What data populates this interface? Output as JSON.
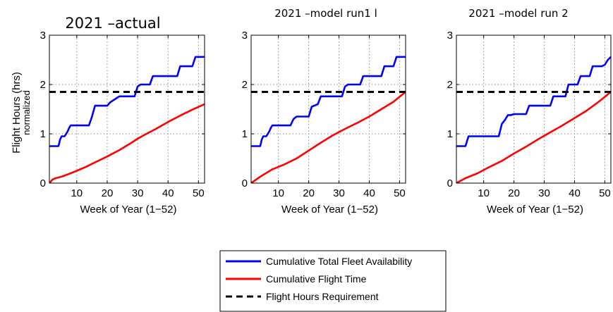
{
  "y_axis_label": {
    "line1": "Flight Hours (hrs)",
    "line2": "normalized"
  },
  "legend": [
    {
      "label": "Cumulative Total Fleet Availability",
      "color": "#0000ff",
      "style": "solid"
    },
    {
      "label": "Cumulative Flight Time",
      "color": "#ff0000",
      "style": "solid"
    },
    {
      "label": "Flight Hours Requirement",
      "color": "#000000",
      "style": "dashed"
    }
  ],
  "chart_data": [
    {
      "type": "line",
      "title": "2021 –actual",
      "xlabel": "Week of Year (1−52)",
      "ylabel": "Flight Hours (hrs) normalized",
      "xlim": [
        1,
        52
      ],
      "ylim": [
        0,
        3
      ],
      "xticks": [
        "10",
        "20",
        "30",
        "40",
        "50"
      ],
      "yticks": [
        "0",
        "1",
        "2",
        "3"
      ],
      "grid": true,
      "series": [
        {
          "name": "Cumulative Total Fleet Availability",
          "color": "#0000ff",
          "style": "steps",
          "x": [
            1,
            4,
            4.5,
            5,
            6,
            7,
            7.5,
            8,
            14,
            15,
            16,
            20,
            21,
            23,
            24,
            29,
            30,
            31,
            34,
            35,
            43,
            44,
            48,
            49,
            52
          ],
          "y": [
            0.75,
            0.75,
            0.88,
            0.95,
            0.95,
            1.05,
            1.12,
            1.17,
            1.17,
            1.35,
            1.57,
            1.57,
            1.64,
            1.72,
            1.76,
            1.76,
            1.96,
            2.0,
            2.0,
            2.17,
            2.17,
            2.37,
            2.37,
            2.56,
            2.56
          ]
        },
        {
          "name": "Cumulative Flight Time",
          "color": "#ff0000",
          "style": "line",
          "x": [
            1,
            2,
            3,
            5,
            8,
            10,
            13,
            16,
            20,
            24,
            28,
            30,
            32,
            36,
            40,
            44,
            48,
            52
          ],
          "y": [
            0,
            0.07,
            0.1,
            0.13,
            0.2,
            0.25,
            0.33,
            0.42,
            0.54,
            0.67,
            0.82,
            0.9,
            0.97,
            1.1,
            1.24,
            1.37,
            1.49,
            1.6
          ]
        },
        {
          "name": "Flight Hours Requirement",
          "color": "#000000",
          "style": "dashed",
          "x": [
            1,
            52
          ],
          "y": [
            1.85,
            1.85
          ]
        }
      ]
    },
    {
      "type": "line",
      "title": "2021 –model run1 l",
      "xlabel": "Week of Year (1−52)",
      "ylabel": "",
      "xlim": [
        1,
        52
      ],
      "ylim": [
        0,
        3
      ],
      "xticks": [
        "10",
        "20",
        "30",
        "40",
        "50"
      ],
      "yticks": [
        "0",
        "1",
        "2",
        "3"
      ],
      "grid": true,
      "series": [
        {
          "name": "Cumulative Total Fleet Availability",
          "color": "#0000ff",
          "style": "steps",
          "x": [
            1,
            4,
            4.5,
            5,
            6,
            7,
            7.5,
            8,
            14,
            15,
            16,
            20,
            21,
            23,
            24,
            31,
            32,
            33,
            37,
            38,
            44,
            45,
            48,
            49,
            52
          ],
          "y": [
            0.75,
            0.75,
            0.88,
            0.95,
            0.95,
            1.05,
            1.12,
            1.17,
            1.17,
            1.3,
            1.35,
            1.35,
            1.55,
            1.6,
            1.76,
            1.76,
            1.96,
            2.0,
            2.0,
            2.17,
            2.17,
            2.37,
            2.37,
            2.56,
            2.56
          ]
        },
        {
          "name": "Cumulative Flight Time",
          "color": "#ff0000",
          "style": "line",
          "x": [
            1,
            4,
            8,
            12,
            16,
            20,
            24,
            28,
            32,
            36,
            40,
            44,
            48,
            52
          ],
          "y": [
            0,
            0.13,
            0.28,
            0.38,
            0.5,
            0.66,
            0.82,
            0.97,
            1.1,
            1.22,
            1.35,
            1.5,
            1.65,
            1.85
          ]
        },
        {
          "name": "Flight Hours Requirement",
          "color": "#000000",
          "style": "dashed",
          "x": [
            1,
            52
          ],
          "y": [
            1.85,
            1.85
          ]
        }
      ]
    },
    {
      "type": "line",
      "title": "2021 –model run 2",
      "xlabel": "Week of Year (1−52)",
      "ylabel": "",
      "xlim": [
        1,
        52
      ],
      "ylim": [
        0,
        3
      ],
      "xticks": [
        "10",
        "20",
        "30",
        "40",
        "50"
      ],
      "yticks": [
        "0",
        "1",
        "2",
        "3"
      ],
      "grid": true,
      "series": [
        {
          "name": "Cumulative Total Fleet Availability",
          "color": "#0000ff",
          "style": "steps",
          "x": [
            1,
            4,
            4.5,
            5,
            15,
            16,
            17,
            18,
            19,
            20,
            24,
            25,
            32,
            33,
            37,
            38,
            41,
            42,
            45,
            46,
            49,
            50,
            51,
            52
          ],
          "y": [
            0.75,
            0.75,
            0.85,
            0.95,
            0.95,
            1.2,
            1.28,
            1.38,
            1.38,
            1.4,
            1.4,
            1.57,
            1.57,
            1.76,
            1.76,
            2.0,
            2.0,
            2.17,
            2.17,
            2.37,
            2.37,
            2.4,
            2.5,
            2.56
          ]
        },
        {
          "name": "Cumulative Flight Time",
          "color": "#ff0000",
          "style": "line",
          "x": [
            1,
            4,
            8,
            12,
            16,
            20,
            24,
            28,
            32,
            36,
            40,
            44,
            48,
            52
          ],
          "y": [
            0,
            0.1,
            0.2,
            0.33,
            0.45,
            0.6,
            0.74,
            0.89,
            1.03,
            1.17,
            1.32,
            1.47,
            1.65,
            1.85
          ]
        },
        {
          "name": "Flight Hours Requirement",
          "color": "#000000",
          "style": "dashed",
          "x": [
            1,
            52
          ],
          "y": [
            1.85,
            1.85
          ]
        }
      ]
    }
  ]
}
